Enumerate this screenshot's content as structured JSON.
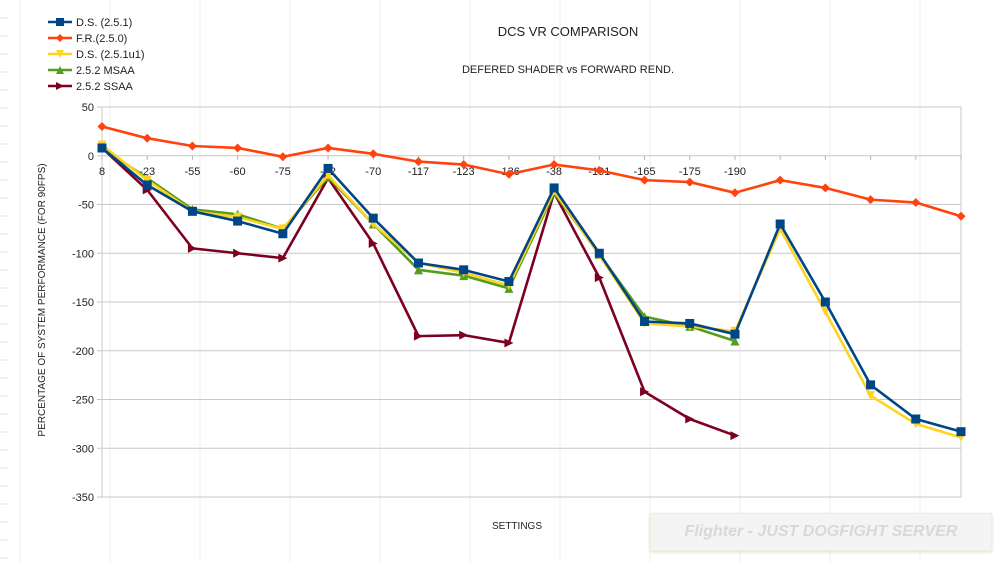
{
  "chart_data": {
    "type": "line",
    "title": "DCS VR COMPARISON",
    "subtitle": "DEFERED SHADER vs FORWARD REND.",
    "xlabel": "SETTINGS",
    "ylabel": "PERCENTAGE OF SYSTEM PERFORMANCE (FOR 90FPS)",
    "ylim": [
      -350,
      50
    ],
    "yticks": [
      50,
      0,
      -50,
      -100,
      -150,
      -200,
      -250,
      -300,
      -350
    ],
    "grid": true,
    "legend_position": "top-left",
    "categories": [
      "8",
      "-23",
      "-55",
      "-60",
      "-75",
      "-22",
      "-70",
      "-117",
      "-123",
      "-136",
      "-38",
      "-101",
      "-165",
      "-175",
      "-190",
      "",
      "",
      "",
      "",
      ""
    ],
    "series": [
      {
        "name": "D.S. (2.5.1)",
        "color": "#004586",
        "marker": "square",
        "values": [
          8,
          -30,
          -57,
          -67,
          -80,
          -13,
          -64,
          -110,
          -117,
          -129,
          -33,
          -100,
          -170,
          -172,
          -183,
          -70,
          -150,
          -235,
          -270,
          -283
        ]
      },
      {
        "name": "F.R.(2.5.0)",
        "color": "#ff420e",
        "marker": "diamond",
        "values": [
          30,
          18,
          10,
          8,
          -1,
          8,
          2,
          -6,
          -9,
          -19,
          -9,
          -15,
          -25,
          -27,
          -38,
          -25,
          -33,
          -45,
          -48,
          -62
        ]
      },
      {
        "name": "D.S. (2.5.1u1)",
        "color": "#ffd320",
        "marker": "triangle-down",
        "values": [
          11,
          -25,
          -57,
          -63,
          -75,
          -20,
          -70,
          -110,
          -120,
          -133,
          -36,
          -102,
          -172,
          -175,
          -180,
          -75,
          -160,
          -246,
          -275,
          -289
        ]
      },
      {
        "name": "2.5.2 MSAA",
        "color": "#579d1c",
        "marker": "triangle-up",
        "values": [
          8,
          -23,
          -55,
          -60,
          -75,
          -22,
          -70,
          -117,
          -123,
          -136,
          -38,
          -101,
          -165,
          -175,
          -190,
          null,
          null,
          null,
          null,
          null
        ]
      },
      {
        "name": "2.5.2 SSAA",
        "color": "#7e0021",
        "marker": "triangle-right",
        "values": [
          8,
          -35,
          -95,
          -100,
          -105,
          -23,
          -90,
          -185,
          -184,
          -192,
          -38,
          -125,
          -242,
          -270,
          -287,
          null,
          null,
          null,
          null,
          null
        ]
      }
    ]
  },
  "watermark": "Flighter - JUST DOGFIGHT SERVER"
}
